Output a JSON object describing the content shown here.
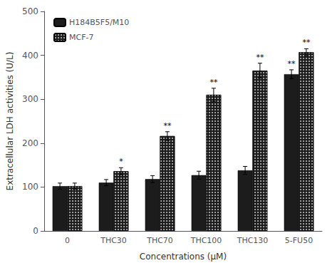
{
  "chart_data": {
    "type": "bar",
    "categories": [
      "0",
      "THC30",
      "THC70",
      "THC100",
      "THC130",
      "5-FU50"
    ],
    "series": [
      {
        "name": "H184B5F5/M10",
        "color": "#1c1c1c",
        "values": [
          102,
          110,
          118,
          127,
          138,
          357
        ],
        "errors": [
          7,
          7,
          8,
          9,
          9,
          10
        ],
        "significance": [
          null,
          null,
          null,
          null,
          null,
          "**"
        ]
      },
      {
        "name": "MCF-7",
        "color": "#1c1c1c",
        "values": [
          102,
          136,
          216,
          310,
          365,
          407
        ],
        "errors": [
          7,
          8,
          10,
          15,
          17,
          8
        ],
        "significance": [
          null,
          "*",
          "**",
          "**",
          "**",
          "**"
        ]
      }
    ],
    "xlabel": "Concentrations (μM)",
    "ylabel": "Extracellular LDH activities (U/L)",
    "ylim": [
      0,
      500
    ],
    "yticks": [
      0,
      100,
      200,
      300,
      400,
      500
    ],
    "grid": false,
    "legend": "upper left"
  }
}
